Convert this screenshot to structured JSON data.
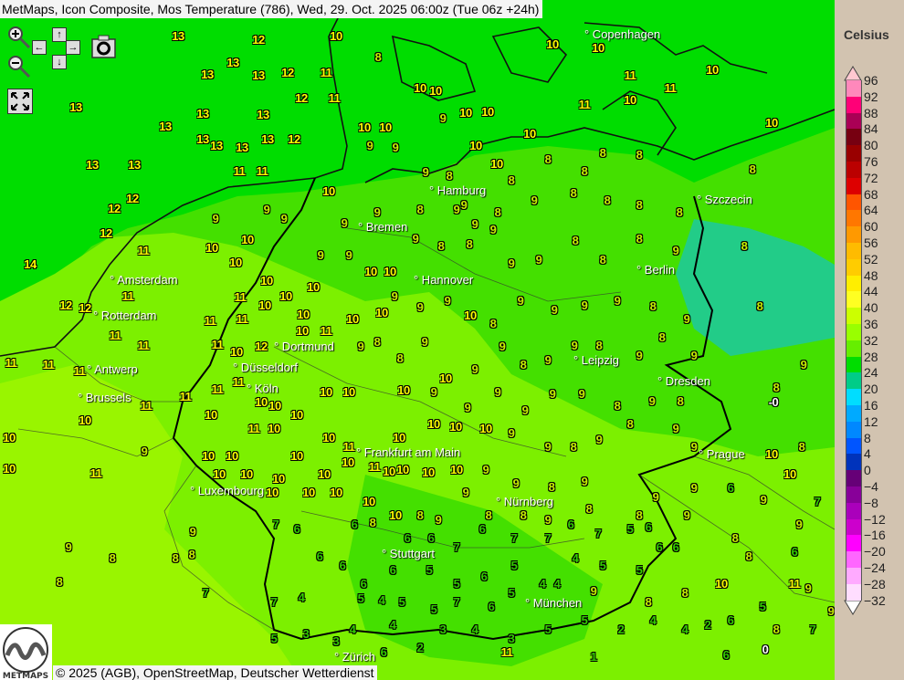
{
  "title": "MetMaps, Icon Composite, Mos Temperature (786), Wed, 29. Oct. 2025 06:00z (Tue 06z +24h)",
  "controls": {
    "zoom_in": "zoom-in-icon",
    "zoom_out": "zoom-out-icon",
    "pan_up": "↑",
    "pan_down": "↓",
    "pan_left": "←",
    "pan_right": "→",
    "screenshot": "camera-icon",
    "fullscreen": "fullscreen-icon"
  },
  "cities": [
    "Copenhagen",
    "Szczecin",
    "Hamburg",
    "Bremen",
    "Amsterdam",
    "Hannover",
    "Berlin",
    "Rotterdam",
    "Dortmund",
    "Antwerp",
    "Düsseldorf",
    "Leipzig",
    "Brussels",
    "Köln",
    "Dresden",
    "Frankfurt am Main",
    "Prague",
    "Luxembourg",
    "Nürnberg",
    "Stuttgart",
    "München",
    "Zürich"
  ],
  "temperatures": [
    "13",
    "12",
    "13",
    "13",
    "13",
    "12",
    "11",
    "12",
    "11",
    "13",
    "13",
    "13",
    "13",
    "13",
    "13",
    "13",
    "13",
    "12",
    "13",
    "13",
    "11",
    "11",
    "12",
    "12",
    "12",
    "14",
    "11",
    "12",
    "12",
    "11",
    "11",
    "11",
    "11",
    "11",
    "11",
    "10",
    "8",
    "10",
    "10",
    "10",
    "10",
    "10",
    "10",
    "10",
    "10",
    "11",
    "11",
    "10",
    "11",
    "10",
    "10",
    "9",
    "9",
    "10",
    "10",
    "10",
    "9",
    "9",
    "8",
    "9",
    "8",
    "8",
    "8",
    "8",
    "8",
    "8",
    "9",
    "9",
    "10",
    "9",
    "9",
    "8",
    "9",
    "9",
    "8",
    "9",
    "8",
    "8",
    "8",
    "8",
    "10",
    "10",
    "9",
    "10",
    "10",
    "10",
    "10",
    "10",
    "9",
    "9",
    "9",
    "8",
    "8",
    "9",
    "9",
    "9",
    "8",
    "8",
    "8",
    "9",
    "8",
    "10",
    "10",
    "10",
    "11",
    "11",
    "11",
    "10",
    "10",
    "9",
    "9",
    "9",
    "10",
    "8",
    "9",
    "9",
    "9",
    "9",
    "8",
    "9",
    "8",
    "10",
    "12",
    "11",
    "10",
    "11",
    "9",
    "8",
    "8",
    "9",
    "10",
    "9",
    "9",
    "8",
    "9",
    "9",
    "8",
    "9",
    "8",
    "9",
    "8",
    "-0",
    "9",
    "11",
    "11",
    "11",
    "11",
    "10",
    "10",
    "10",
    "10",
    "9",
    "9",
    "9",
    "9",
    "9",
    "9",
    "8",
    "9",
    "8",
    "10",
    "10",
    "10",
    "11",
    "9",
    "10",
    "11",
    "10",
    "10",
    "10",
    "10",
    "11",
    "11",
    "10",
    "10",
    "10",
    "10",
    "9",
    "9",
    "8",
    "9",
    "8",
    "9",
    "9",
    "10",
    "8",
    "10",
    "10",
    "10",
    "10",
    "10",
    "10",
    "10",
    "10",
    "10",
    "10",
    "10",
    "9",
    "9",
    "8",
    "9",
    "9",
    "9",
    "6",
    "10",
    "10",
    "10",
    "10",
    "10",
    "10",
    "10",
    "8",
    "9",
    "9",
    "8",
    "8",
    "9",
    "8",
    "8",
    "9",
    "9",
    "9",
    "9",
    "8",
    "8",
    "8",
    "8",
    "7",
    "7",
    "6",
    "6",
    "8",
    "6",
    "6",
    "7",
    "6",
    "7",
    "7",
    "6",
    "7",
    "5",
    "6",
    "6",
    "8",
    "9",
    "7",
    "6",
    "6",
    "6",
    "6",
    "5",
    "5",
    "6",
    "5",
    "4",
    "4",
    "5",
    "5",
    "6",
    "8",
    "6",
    "7",
    "4",
    "5",
    "4",
    "5",
    "5",
    "7",
    "6",
    "5",
    "4",
    "9",
    "8",
    "8",
    "10",
    "11",
    "9",
    "9",
    "5",
    "3",
    "4",
    "4",
    "3",
    "4",
    "3",
    "5",
    "5",
    "2",
    "4",
    "4",
    "2",
    "6",
    "8",
    "7",
    "5",
    "3",
    "6",
    "2",
    "11",
    "1",
    "6",
    "0"
  ],
  "legend": {
    "title": "Celsius",
    "labels": [
      "96",
      "92",
      "88",
      "84",
      "80",
      "76",
      "72",
      "68",
      "64",
      "60",
      "56",
      "52",
      "48",
      "44",
      "40",
      "36",
      "32",
      "28",
      "24",
      "20",
      "16",
      "12",
      "8",
      "4",
      "0",
      "−4",
      "−8",
      "−12",
      "−16",
      "−20",
      "−24",
      "−28",
      "−32"
    ],
    "colors": [
      "#ff88bb",
      "#ff0077",
      "#aa0055",
      "#770011",
      "#990000",
      "#bb0000",
      "#dd0000",
      "#ff5500",
      "#ff7700",
      "#ff9900",
      "#ffbb00",
      "#ffcc00",
      "#ffee00",
      "#ffff22",
      "#ccff00",
      "#99ff00",
      "#66ee00",
      "#00dd00",
      "#00cc88",
      "#00ddff",
      "#00aaff",
      "#0088ff",
      "#0055ff",
      "#0033bb",
      "#660077",
      "#880099",
      "#aa00bb",
      "#cc00cc",
      "#ff00ff",
      "#ff66ff",
      "#ffaaff",
      "#ffddff"
    ],
    "top_arrow_color": "#ffc8d0",
    "bottom_arrow_color": "#ffffff"
  },
  "logo_text": "METMAPS",
  "copyright": "© 2025 (AGB), OpenStreetMap, Deutscher Wetterdienst"
}
